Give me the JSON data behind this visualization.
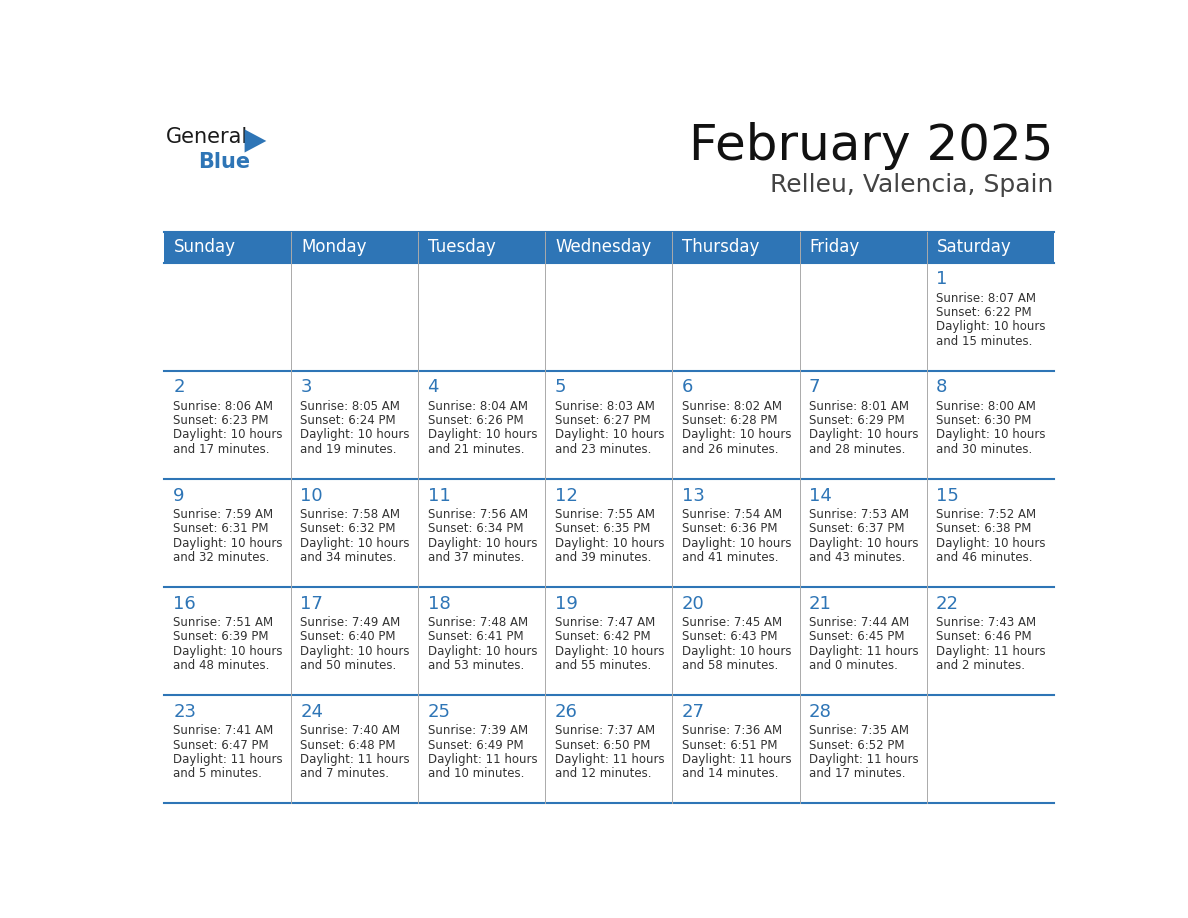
{
  "title": "February 2025",
  "subtitle": "Relleu, Valencia, Spain",
  "header_bg": "#2E75B6",
  "header_text_color": "#FFFFFF",
  "cell_bg": "#FFFFFF",
  "day_number_color": "#2E75B6",
  "body_text_color": "#333333",
  "border_color": "#2E75B6",
  "divider_color": "#AAAAAA",
  "days_of_week": [
    "Sunday",
    "Monday",
    "Tuesday",
    "Wednesday",
    "Thursday",
    "Friday",
    "Saturday"
  ],
  "weeks": [
    [
      {
        "day": null,
        "sunrise": null,
        "sunset": null,
        "daylight_line1": null,
        "daylight_line2": null
      },
      {
        "day": null,
        "sunrise": null,
        "sunset": null,
        "daylight_line1": null,
        "daylight_line2": null
      },
      {
        "day": null,
        "sunrise": null,
        "sunset": null,
        "daylight_line1": null,
        "daylight_line2": null
      },
      {
        "day": null,
        "sunrise": null,
        "sunset": null,
        "daylight_line1": null,
        "daylight_line2": null
      },
      {
        "day": null,
        "sunrise": null,
        "sunset": null,
        "daylight_line1": null,
        "daylight_line2": null
      },
      {
        "day": null,
        "sunrise": null,
        "sunset": null,
        "daylight_line1": null,
        "daylight_line2": null
      },
      {
        "day": 1,
        "sunrise": "8:07 AM",
        "sunset": "6:22 PM",
        "daylight_line1": "Daylight: 10 hours",
        "daylight_line2": "and 15 minutes."
      }
    ],
    [
      {
        "day": 2,
        "sunrise": "8:06 AM",
        "sunset": "6:23 PM",
        "daylight_line1": "Daylight: 10 hours",
        "daylight_line2": "and 17 minutes."
      },
      {
        "day": 3,
        "sunrise": "8:05 AM",
        "sunset": "6:24 PM",
        "daylight_line1": "Daylight: 10 hours",
        "daylight_line2": "and 19 minutes."
      },
      {
        "day": 4,
        "sunrise": "8:04 AM",
        "sunset": "6:26 PM",
        "daylight_line1": "Daylight: 10 hours",
        "daylight_line2": "and 21 minutes."
      },
      {
        "day": 5,
        "sunrise": "8:03 AM",
        "sunset": "6:27 PM",
        "daylight_line1": "Daylight: 10 hours",
        "daylight_line2": "and 23 minutes."
      },
      {
        "day": 6,
        "sunrise": "8:02 AM",
        "sunset": "6:28 PM",
        "daylight_line1": "Daylight: 10 hours",
        "daylight_line2": "and 26 minutes."
      },
      {
        "day": 7,
        "sunrise": "8:01 AM",
        "sunset": "6:29 PM",
        "daylight_line1": "Daylight: 10 hours",
        "daylight_line2": "and 28 minutes."
      },
      {
        "day": 8,
        "sunrise": "8:00 AM",
        "sunset": "6:30 PM",
        "daylight_line1": "Daylight: 10 hours",
        "daylight_line2": "and 30 minutes."
      }
    ],
    [
      {
        "day": 9,
        "sunrise": "7:59 AM",
        "sunset": "6:31 PM",
        "daylight_line1": "Daylight: 10 hours",
        "daylight_line2": "and 32 minutes."
      },
      {
        "day": 10,
        "sunrise": "7:58 AM",
        "sunset": "6:32 PM",
        "daylight_line1": "Daylight: 10 hours",
        "daylight_line2": "and 34 minutes."
      },
      {
        "day": 11,
        "sunrise": "7:56 AM",
        "sunset": "6:34 PM",
        "daylight_line1": "Daylight: 10 hours",
        "daylight_line2": "and 37 minutes."
      },
      {
        "day": 12,
        "sunrise": "7:55 AM",
        "sunset": "6:35 PM",
        "daylight_line1": "Daylight: 10 hours",
        "daylight_line2": "and 39 minutes."
      },
      {
        "day": 13,
        "sunrise": "7:54 AM",
        "sunset": "6:36 PM",
        "daylight_line1": "Daylight: 10 hours",
        "daylight_line2": "and 41 minutes."
      },
      {
        "day": 14,
        "sunrise": "7:53 AM",
        "sunset": "6:37 PM",
        "daylight_line1": "Daylight: 10 hours",
        "daylight_line2": "and 43 minutes."
      },
      {
        "day": 15,
        "sunrise": "7:52 AM",
        "sunset": "6:38 PM",
        "daylight_line1": "Daylight: 10 hours",
        "daylight_line2": "and 46 minutes."
      }
    ],
    [
      {
        "day": 16,
        "sunrise": "7:51 AM",
        "sunset": "6:39 PM",
        "daylight_line1": "Daylight: 10 hours",
        "daylight_line2": "and 48 minutes."
      },
      {
        "day": 17,
        "sunrise": "7:49 AM",
        "sunset": "6:40 PM",
        "daylight_line1": "Daylight: 10 hours",
        "daylight_line2": "and 50 minutes."
      },
      {
        "day": 18,
        "sunrise": "7:48 AM",
        "sunset": "6:41 PM",
        "daylight_line1": "Daylight: 10 hours",
        "daylight_line2": "and 53 minutes."
      },
      {
        "day": 19,
        "sunrise": "7:47 AM",
        "sunset": "6:42 PM",
        "daylight_line1": "Daylight: 10 hours",
        "daylight_line2": "and 55 minutes."
      },
      {
        "day": 20,
        "sunrise": "7:45 AM",
        "sunset": "6:43 PM",
        "daylight_line1": "Daylight: 10 hours",
        "daylight_line2": "and 58 minutes."
      },
      {
        "day": 21,
        "sunrise": "7:44 AM",
        "sunset": "6:45 PM",
        "daylight_line1": "Daylight: 11 hours",
        "daylight_line2": "and 0 minutes."
      },
      {
        "day": 22,
        "sunrise": "7:43 AM",
        "sunset": "6:46 PM",
        "daylight_line1": "Daylight: 11 hours",
        "daylight_line2": "and 2 minutes."
      }
    ],
    [
      {
        "day": 23,
        "sunrise": "7:41 AM",
        "sunset": "6:47 PM",
        "daylight_line1": "Daylight: 11 hours",
        "daylight_line2": "and 5 minutes."
      },
      {
        "day": 24,
        "sunrise": "7:40 AM",
        "sunset": "6:48 PM",
        "daylight_line1": "Daylight: 11 hours",
        "daylight_line2": "and 7 minutes."
      },
      {
        "day": 25,
        "sunrise": "7:39 AM",
        "sunset": "6:49 PM",
        "daylight_line1": "Daylight: 11 hours",
        "daylight_line2": "and 10 minutes."
      },
      {
        "day": 26,
        "sunrise": "7:37 AM",
        "sunset": "6:50 PM",
        "daylight_line1": "Daylight: 11 hours",
        "daylight_line2": "and 12 minutes."
      },
      {
        "day": 27,
        "sunrise": "7:36 AM",
        "sunset": "6:51 PM",
        "daylight_line1": "Daylight: 11 hours",
        "daylight_line2": "and 14 minutes."
      },
      {
        "day": 28,
        "sunrise": "7:35 AM",
        "sunset": "6:52 PM",
        "daylight_line1": "Daylight: 11 hours",
        "daylight_line2": "and 17 minutes."
      },
      {
        "day": null,
        "sunrise": null,
        "sunset": null,
        "daylight_line1": null,
        "daylight_line2": null
      }
    ]
  ],
  "logo_color_general": "#1a1a1a",
  "logo_color_blue": "#2E75B6",
  "logo_triangle_color": "#2E75B6",
  "title_fontsize": 36,
  "subtitle_fontsize": 18,
  "header_fontsize": 12,
  "day_num_fontsize": 13,
  "cell_text_fontsize": 8.5
}
